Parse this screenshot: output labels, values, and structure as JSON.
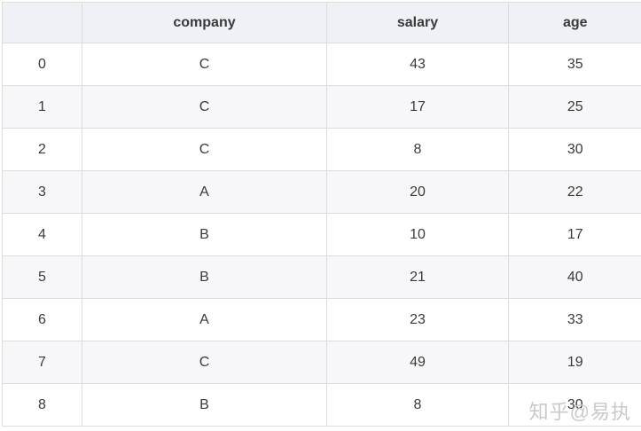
{
  "table": {
    "header": {
      "index": "",
      "company": "company",
      "salary": "salary",
      "age": "age"
    },
    "rows": [
      {
        "index": "0",
        "company": "C",
        "salary": "43",
        "age": "35"
      },
      {
        "index": "1",
        "company": "C",
        "salary": "17",
        "age": "25"
      },
      {
        "index": "2",
        "company": "C",
        "salary": "8",
        "age": "30"
      },
      {
        "index": "3",
        "company": "A",
        "salary": "20",
        "age": "22"
      },
      {
        "index": "4",
        "company": "B",
        "salary": "10",
        "age": "17"
      },
      {
        "index": "5",
        "company": "B",
        "salary": "21",
        "age": "40"
      },
      {
        "index": "6",
        "company": "A",
        "salary": "23",
        "age": "33"
      },
      {
        "index": "7",
        "company": "C",
        "salary": "49",
        "age": "19"
      },
      {
        "index": "8",
        "company": "B",
        "salary": "8",
        "age": "30"
      }
    ]
  },
  "watermark": {
    "text": "知乎@易执"
  },
  "colors": {
    "header_bg": "#eef1f5",
    "stripe_bg": "#f7f7f9",
    "border": "#dddddd",
    "text": "#3a3a3a",
    "watermark": "#c9c9c9"
  }
}
